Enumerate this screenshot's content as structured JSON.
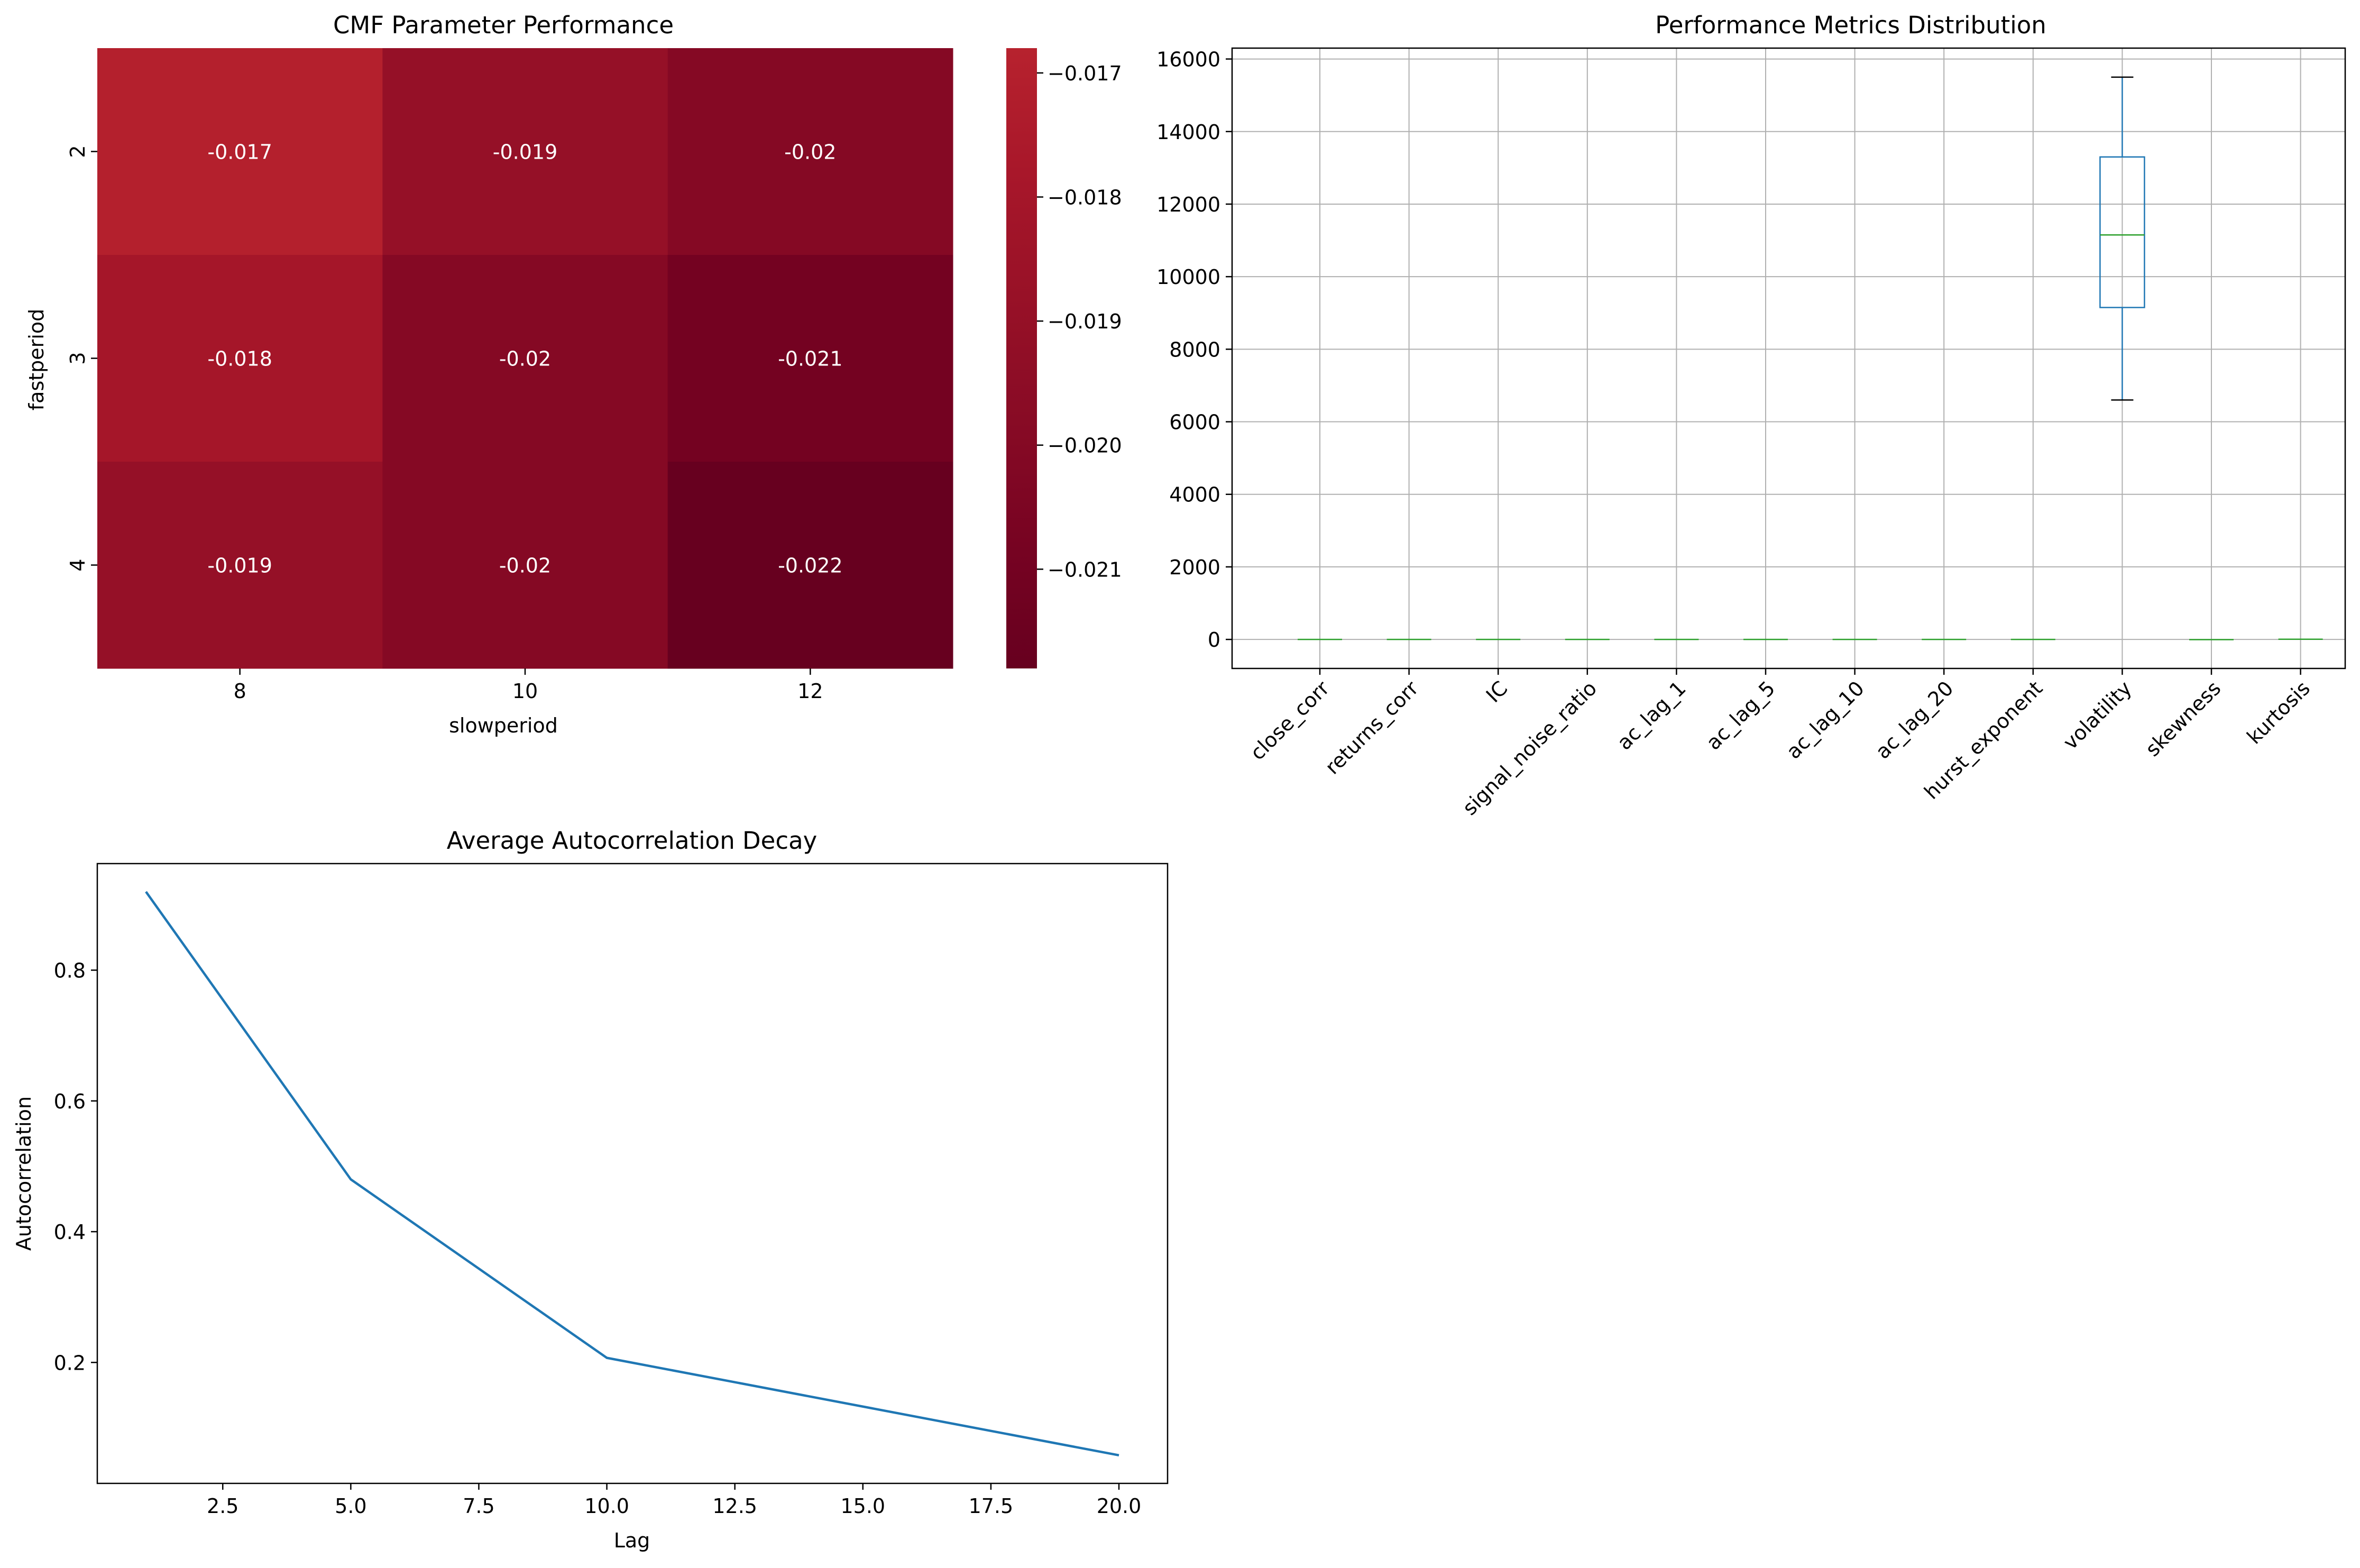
{
  "chart_data": [
    {
      "type": "heatmap",
      "title": "CMF Parameter Performance",
      "xlabel": "slowperiod",
      "ylabel": "fastperiod",
      "x_categories": [
        "8",
        "10",
        "12"
      ],
      "y_categories": [
        "2",
        "3",
        "4"
      ],
      "values": [
        [
          -0.017,
          -0.019,
          -0.02
        ],
        [
          -0.018,
          -0.02,
          -0.021
        ],
        [
          -0.019,
          -0.02,
          -0.022
        ]
      ],
      "cell_labels": [
        [
          "-0.017",
          "-0.019",
          "-0.02"
        ],
        [
          "-0.018",
          "-0.02",
          "-0.021"
        ],
        [
          "-0.019",
          "-0.02",
          "-0.022"
        ]
      ],
      "colorbar": {
        "vmin": -0.0218,
        "vmax": -0.0168,
        "ticks": [
          -0.017,
          -0.018,
          -0.019,
          -0.02,
          -0.021
        ],
        "tick_labels": [
          "−0.017",
          "−0.018",
          "−0.019",
          "−0.020",
          "−0.021"
        ],
        "colors_high_to_low": [
          "#b7222e",
          "#a8172a",
          "#981127",
          "#880b25",
          "#770322",
          "#67001f"
        ]
      }
    },
    {
      "type": "box",
      "title": "Performance Metrics Distribution",
      "categories": [
        "close_corr",
        "returns_corr",
        "IC",
        "signal_noise_ratio",
        "ac_lag_1",
        "ac_lag_5",
        "ac_lag_10",
        "ac_lag_20",
        "hurst_exponent",
        "volatility",
        "skewness",
        "kurtosis"
      ],
      "boxes": [
        {
          "whislo": 0,
          "q1": 0,
          "med": 0,
          "q3": 0,
          "whishi": 0
        },
        {
          "whislo": 0,
          "q1": 0,
          "med": 0,
          "q3": 0,
          "whishi": 0
        },
        {
          "whislo": 0,
          "q1": 0,
          "med": 0,
          "q3": 0,
          "whishi": 0
        },
        {
          "whislo": 0,
          "q1": 0,
          "med": 0,
          "q3": 0,
          "whishi": 0
        },
        {
          "whislo": 0,
          "q1": 0,
          "med": 0,
          "q3": 0,
          "whishi": 0
        },
        {
          "whislo": 0,
          "q1": 0,
          "med": 0,
          "q3": 0,
          "whishi": 0
        },
        {
          "whislo": 0,
          "q1": 0,
          "med": 0,
          "q3": 0,
          "whishi": 0
        },
        {
          "whislo": 0,
          "q1": 0,
          "med": 0,
          "q3": 0,
          "whishi": 0
        },
        {
          "whislo": 0,
          "q1": 0,
          "med": 0,
          "q3": 0,
          "whishi": 0
        },
        {
          "whislo": 6600,
          "q1": 9150,
          "med": 11150,
          "q3": 13300,
          "whishi": 15500
        },
        {
          "whislo": -5,
          "q1": -5,
          "med": -5,
          "q3": -5,
          "whishi": -5
        },
        {
          "whislo": 5,
          "q1": 5,
          "med": 5,
          "q3": 5,
          "whishi": 5
        }
      ],
      "ylim": [
        -800,
        16300
      ],
      "yticks": [
        0,
        2000,
        4000,
        6000,
        8000,
        10000,
        12000,
        14000,
        16000
      ],
      "grid": true,
      "colors": {
        "box": "#1f77b4",
        "median": "#2ca02c",
        "cap": "#000000"
      }
    },
    {
      "type": "line",
      "title": "Average Autocorrelation Decay",
      "xlabel": "Lag",
      "ylabel": "Autocorrelation",
      "x": [
        1,
        5,
        10,
        20
      ],
      "y": [
        0.92,
        0.48,
        0.207,
        0.058
      ],
      "xlim": [
        0.05,
        20.95
      ],
      "ylim": [
        0.015,
        0.963
      ],
      "xticks": [
        2.5,
        5.0,
        7.5,
        10.0,
        12.5,
        15.0,
        17.5,
        20.0
      ],
      "xtick_labels": [
        "2.5",
        "5.0",
        "7.5",
        "10.0",
        "12.5",
        "15.0",
        "17.5",
        "20.0"
      ],
      "yticks": [
        0.2,
        0.4,
        0.6,
        0.8
      ],
      "ytick_labels": [
        "0.2",
        "0.4",
        "0.6",
        "0.8"
      ],
      "color": "#1f77b4"
    }
  ]
}
